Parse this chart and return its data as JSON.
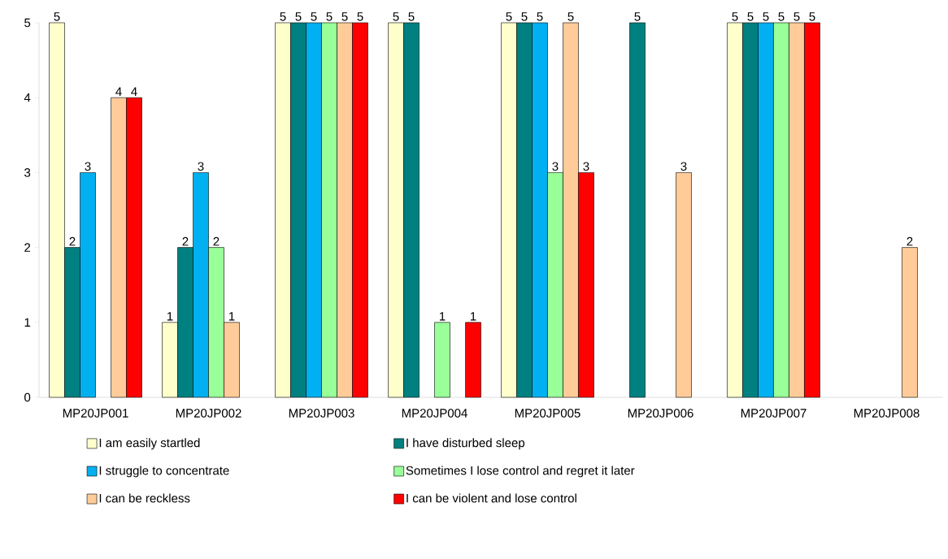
{
  "chart_data": {
    "type": "bar",
    "categories": [
      "MP20JP001",
      "MP20JP002",
      "MP20JP003",
      "MP20JP004",
      "MP20JP005",
      "MP20JP006",
      "MP20JP007",
      "MP20JP008"
    ],
    "series": [
      {
        "name": "I am easily startled",
        "color": "#ffffcc",
        "values": [
          5,
          1,
          5,
          5,
          5,
          null,
          5,
          null
        ]
      },
      {
        "name": "I have disturbed sleep",
        "color": "#008080",
        "values": [
          2,
          2,
          5,
          5,
          5,
          5,
          5,
          null
        ]
      },
      {
        "name": "I struggle to concentrate",
        "color": "#00b0f0",
        "values": [
          3,
          3,
          5,
          null,
          5,
          null,
          5,
          null
        ]
      },
      {
        "name": "Sometimes I lose control and regret it later",
        "color": "#99ff99",
        "values": [
          null,
          2,
          5,
          1,
          3,
          null,
          5,
          null
        ]
      },
      {
        "name": "I can be reckless",
        "color": "#ffcc99",
        "values": [
          4,
          1,
          5,
          null,
          5,
          3,
          5,
          2
        ]
      },
      {
        "name": "I can be violent and lose control",
        "color": "#ff0000",
        "values": [
          4,
          null,
          5,
          1,
          3,
          null,
          5,
          null
        ]
      }
    ],
    "ylim": [
      0,
      5
    ],
    "yticks": [
      0,
      1,
      2,
      3,
      4,
      5
    ],
    "data_labels": true,
    "legend": "bottom"
  }
}
